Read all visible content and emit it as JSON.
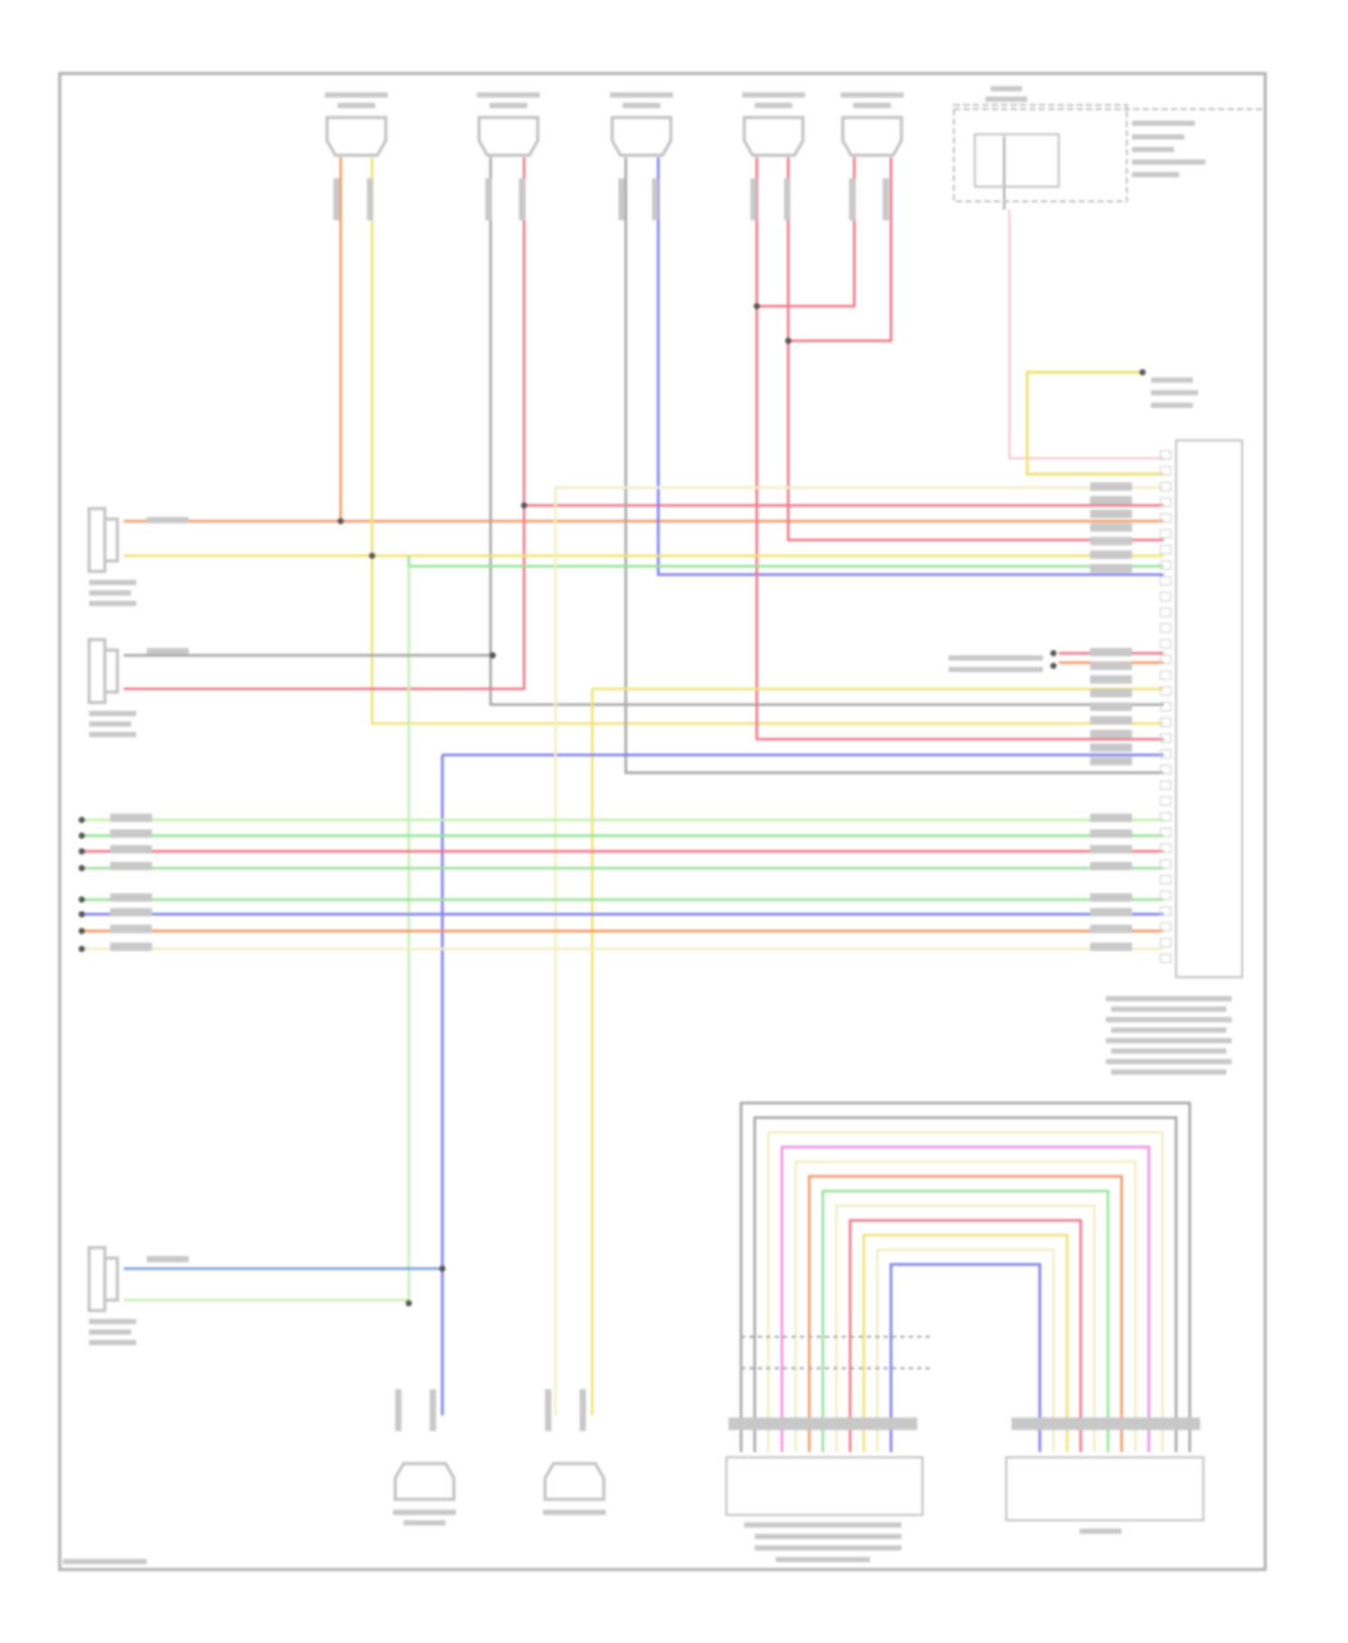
{
  "diagram": {
    "type": "wiring-diagram",
    "colors": {
      "frame": "#b4b4b4",
      "component": "#c4c4c4",
      "splice": "#555555",
      "red": "#f07a8a",
      "orange": "#f59a6a",
      "yellow": "#f2e27a",
      "light_yellow": "#f3efc4",
      "green": "#9ae39a",
      "blue": "#8080f0",
      "steel_blue": "#7aa0e0",
      "gray": "#a8a8a8",
      "pink": "#f090e8",
      "light_green": "#c8f0b0"
    },
    "top_connector_count": 5,
    "side_sensor_count": 3,
    "bottom_connector_count": 2,
    "bottom_module_count": 2
  }
}
